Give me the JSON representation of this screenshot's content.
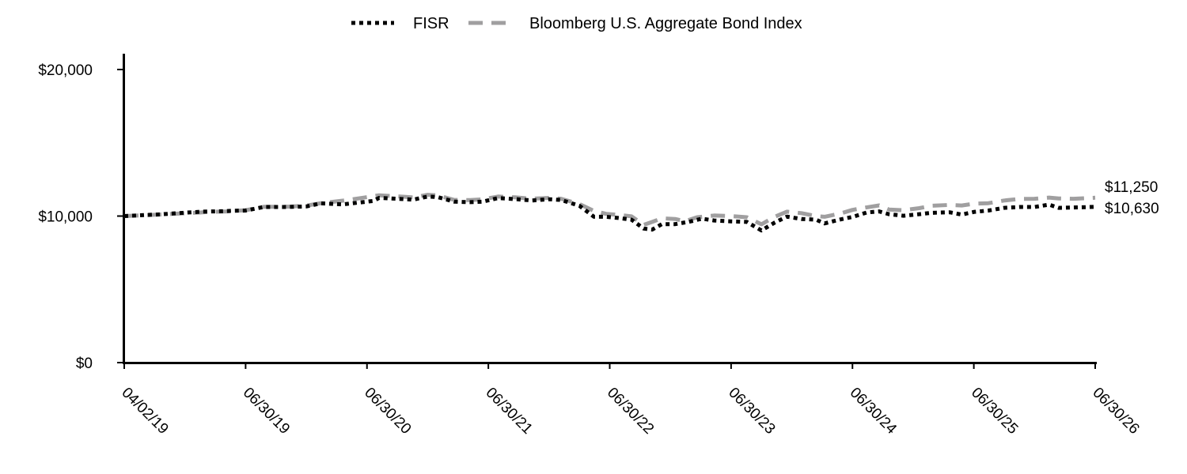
{
  "chart_data": {
    "type": "line",
    "title": "",
    "xlabel": "",
    "ylabel": "",
    "ylim": [
      0,
      20000
    ],
    "y_ticks": [
      "$0",
      "$10,000",
      "$20,000"
    ],
    "y_tick_values": [
      0,
      10000,
      20000
    ],
    "x_ticks": [
      "04/02/19",
      "06/30/19",
      "06/30/20",
      "06/30/21",
      "06/30/22",
      "06/30/23",
      "06/30/24",
      "06/30/25",
      "06/30/26"
    ],
    "legend_position": "top-center",
    "grid": false,
    "series": [
      {
        "name": "FISR",
        "color": "#000000",
        "style": "dotted",
        "end_label": "$10,630",
        "points": [
          {
            "x": 0.0,
            "y": 10000
          },
          {
            "x": 0.1,
            "y": 10040
          },
          {
            "x": 0.2,
            "y": 10080
          },
          {
            "x": 0.3,
            "y": 10120
          },
          {
            "x": 0.4,
            "y": 10170
          },
          {
            "x": 0.5,
            "y": 10230
          },
          {
            "x": 0.65,
            "y": 10300
          },
          {
            "x": 0.8,
            "y": 10330
          },
          {
            "x": 0.9,
            "y": 10360
          },
          {
            "x": 1.0,
            "y": 10380
          },
          {
            "x": 1.15,
            "y": 10620
          },
          {
            "x": 1.35,
            "y": 10620
          },
          {
            "x": 1.5,
            "y": 10660
          },
          {
            "x": 1.62,
            "y": 10870
          },
          {
            "x": 1.8,
            "y": 10800
          },
          {
            "x": 1.95,
            "y": 10940
          },
          {
            "x": 2.05,
            "y": 11030
          },
          {
            "x": 2.1,
            "y": 11240
          },
          {
            "x": 2.25,
            "y": 11180
          },
          {
            "x": 2.38,
            "y": 11120
          },
          {
            "x": 2.5,
            "y": 11330
          },
          {
            "x": 2.58,
            "y": 11300
          },
          {
            "x": 2.72,
            "y": 10980
          },
          {
            "x": 2.85,
            "y": 10950
          },
          {
            "x": 2.95,
            "y": 10980
          },
          {
            "x": 3.08,
            "y": 11230
          },
          {
            "x": 3.22,
            "y": 11160
          },
          {
            "x": 3.36,
            "y": 11060
          },
          {
            "x": 3.5,
            "y": 11150
          },
          {
            "x": 3.6,
            "y": 11100
          },
          {
            "x": 3.75,
            "y": 10700
          },
          {
            "x": 3.87,
            "y": 9950
          },
          {
            "x": 3.97,
            "y": 9950
          },
          {
            "x": 4.07,
            "y": 9870
          },
          {
            "x": 4.18,
            "y": 9750
          },
          {
            "x": 4.28,
            "y": 9150
          },
          {
            "x": 4.35,
            "y": 9080
          },
          {
            "x": 4.43,
            "y": 9450
          },
          {
            "x": 4.54,
            "y": 9450
          },
          {
            "x": 4.66,
            "y": 9620
          },
          {
            "x": 4.76,
            "y": 9820
          },
          {
            "x": 4.86,
            "y": 9700
          },
          {
            "x": 5.0,
            "y": 9640
          },
          {
            "x": 5.13,
            "y": 9600
          },
          {
            "x": 5.25,
            "y": 9020
          },
          {
            "x": 5.36,
            "y": 9560
          },
          {
            "x": 5.46,
            "y": 9960
          },
          {
            "x": 5.58,
            "y": 9800
          },
          {
            "x": 5.7,
            "y": 9750
          },
          {
            "x": 5.77,
            "y": 9500
          },
          {
            "x": 5.9,
            "y": 9770
          },
          {
            "x": 6.0,
            "y": 9940
          },
          {
            "x": 6.12,
            "y": 10250
          },
          {
            "x": 6.22,
            "y": 10320
          },
          {
            "x": 6.3,
            "y": 10130
          },
          {
            "x": 6.42,
            "y": 10020
          },
          {
            "x": 6.55,
            "y": 10130
          },
          {
            "x": 6.65,
            "y": 10220
          },
          {
            "x": 6.8,
            "y": 10260
          },
          {
            "x": 6.9,
            "y": 10100
          },
          {
            "x": 7.0,
            "y": 10280
          },
          {
            "x": 7.12,
            "y": 10380
          },
          {
            "x": 7.25,
            "y": 10560
          },
          {
            "x": 7.38,
            "y": 10620
          },
          {
            "x": 7.5,
            "y": 10620
          },
          {
            "x": 7.62,
            "y": 10780
          },
          {
            "x": 7.7,
            "y": 10560
          },
          {
            "x": 7.82,
            "y": 10580
          },
          {
            "x": 8.0,
            "y": 10630
          }
        ]
      },
      {
        "name": "Bloomberg U.S. Aggregate Bond Index",
        "color": "#a09fa0",
        "style": "dashed",
        "end_label": "$11,250",
        "points": [
          {
            "x": 0.0,
            "y": 10000
          },
          {
            "x": 0.15,
            "y": 10050
          },
          {
            "x": 0.3,
            "y": 10110
          },
          {
            "x": 0.5,
            "y": 10190
          },
          {
            "x": 0.7,
            "y": 10280
          },
          {
            "x": 0.85,
            "y": 10320
          },
          {
            "x": 1.0,
            "y": 10400
          },
          {
            "x": 1.15,
            "y": 10630
          },
          {
            "x": 1.35,
            "y": 10640
          },
          {
            "x": 1.5,
            "y": 10710
          },
          {
            "x": 1.62,
            "y": 10880
          },
          {
            "x": 1.8,
            "y": 11050
          },
          {
            "x": 1.95,
            "y": 11230
          },
          {
            "x": 2.1,
            "y": 11420
          },
          {
            "x": 2.25,
            "y": 11350
          },
          {
            "x": 2.38,
            "y": 11270
          },
          {
            "x": 2.5,
            "y": 11450
          },
          {
            "x": 2.58,
            "y": 11420
          },
          {
            "x": 2.72,
            "y": 11100
          },
          {
            "x": 2.85,
            "y": 11090
          },
          {
            "x": 2.95,
            "y": 11140
          },
          {
            "x": 3.08,
            "y": 11330
          },
          {
            "x": 3.22,
            "y": 11280
          },
          {
            "x": 3.36,
            "y": 11180
          },
          {
            "x": 3.5,
            "y": 11240
          },
          {
            "x": 3.6,
            "y": 11180
          },
          {
            "x": 3.75,
            "y": 10820
          },
          {
            "x": 3.87,
            "y": 10350
          },
          {
            "x": 3.97,
            "y": 10150
          },
          {
            "x": 4.07,
            "y": 10080
          },
          {
            "x": 4.18,
            "y": 9980
          },
          {
            "x": 4.28,
            "y": 9400
          },
          {
            "x": 4.35,
            "y": 9600
          },
          {
            "x": 4.43,
            "y": 9850
          },
          {
            "x": 4.54,
            "y": 9800
          },
          {
            "x": 4.62,
            "y": 9650
          },
          {
            "x": 4.72,
            "y": 9920
          },
          {
            "x": 4.86,
            "y": 10040
          },
          {
            "x": 5.0,
            "y": 10000
          },
          {
            "x": 5.13,
            "y": 9920
          },
          {
            "x": 5.25,
            "y": 9440
          },
          {
            "x": 5.36,
            "y": 9950
          },
          {
            "x": 5.46,
            "y": 10300
          },
          {
            "x": 5.58,
            "y": 10200
          },
          {
            "x": 5.7,
            "y": 10000
          },
          {
            "x": 5.77,
            "y": 9950
          },
          {
            "x": 5.9,
            "y": 10170
          },
          {
            "x": 6.0,
            "y": 10420
          },
          {
            "x": 6.12,
            "y": 10600
          },
          {
            "x": 6.22,
            "y": 10730
          },
          {
            "x": 6.3,
            "y": 10450
          },
          {
            "x": 6.42,
            "y": 10400
          },
          {
            "x": 6.55,
            "y": 10540
          },
          {
            "x": 6.65,
            "y": 10700
          },
          {
            "x": 6.8,
            "y": 10760
          },
          {
            "x": 6.9,
            "y": 10720
          },
          {
            "x": 7.0,
            "y": 10840
          },
          {
            "x": 7.12,
            "y": 10880
          },
          {
            "x": 7.25,
            "y": 11060
          },
          {
            "x": 7.38,
            "y": 11170
          },
          {
            "x": 7.5,
            "y": 11180
          },
          {
            "x": 7.62,
            "y": 11260
          },
          {
            "x": 7.7,
            "y": 11200
          },
          {
            "x": 7.82,
            "y": 11180
          },
          {
            "x": 8.0,
            "y": 11250
          }
        ]
      }
    ]
  }
}
